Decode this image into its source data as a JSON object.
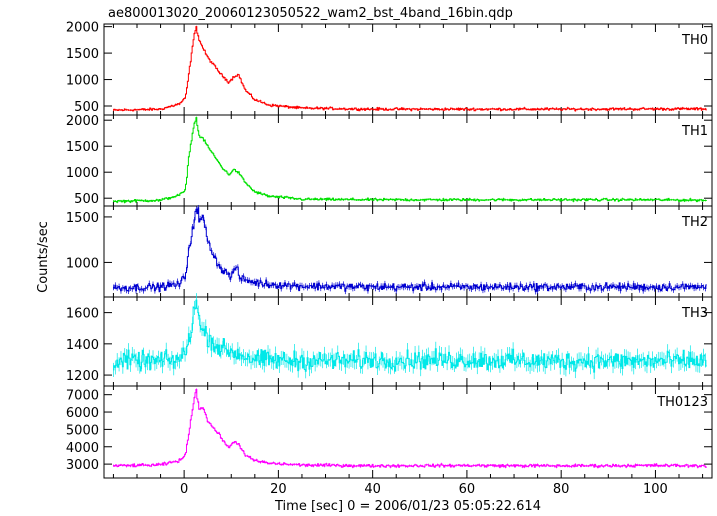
{
  "title": "ae800013020_20060123050522_wam2_bst_4band_16bin.qdp",
  "chart_data": {
    "type": "line",
    "title": "ae800013020_20060123050522_wam2_bst_4band_16bin.qdp",
    "xlabel": "Time [sec] 0 = 2006/01/23 05:05:22.614",
    "ylabel": "Counts/sec",
    "xlim": [
      -17,
      112
    ],
    "xticks": [
      0,
      20,
      40,
      60,
      80,
      100
    ],
    "xtick_labels": [
      "0",
      "20",
      "40",
      "60",
      "80",
      "100"
    ],
    "grid": false,
    "panels": [
      {
        "name": "TH0",
        "color": "#ff0000",
        "ylim": [
          330,
          2050
        ],
        "yticks": [
          500,
          1000,
          1500,
          2000
        ],
        "ytick_labels": [
          "500",
          "1000",
          "1500",
          "2000"
        ],
        "baseline": 420,
        "pre_level": 500,
        "noise": 20,
        "flare_scale": 1550,
        "peak_x": 2.5,
        "peak_y": 2000,
        "keypoints": [
          [
            -15,
            420
          ],
          [
            -5,
            440
          ],
          [
            -1,
            540
          ],
          [
            0.3,
            650
          ],
          [
            1,
            1100
          ],
          [
            2,
            1750
          ],
          [
            2.5,
            2000
          ],
          [
            3.2,
            1750
          ],
          [
            4,
            1600
          ],
          [
            5,
            1420
          ],
          [
            6.5,
            1250
          ],
          [
            8,
            1080
          ],
          [
            9.5,
            950
          ],
          [
            10.5,
            1050
          ],
          [
            11.5,
            1100
          ],
          [
            13,
            800
          ],
          [
            15,
            620
          ],
          [
            18,
            520
          ],
          [
            25,
            460
          ],
          [
            40,
            440
          ],
          [
            60,
            440
          ],
          [
            80,
            440
          ],
          [
            100,
            445
          ],
          [
            111,
            445
          ]
        ]
      },
      {
        "name": "TH1",
        "color": "#00e000",
        "ylim": [
          350,
          2100
        ],
        "yticks": [
          500,
          1000,
          1500,
          2000
        ],
        "ytick_labels": [
          "500",
          "1000",
          "1500",
          "2000"
        ],
        "baseline": 440,
        "pre_level": 520,
        "noise": 20,
        "flare_scale": 1550,
        "peak_x": 2.5,
        "peak_y": 2050,
        "keypoints": [
          [
            -15,
            440
          ],
          [
            -5,
            460
          ],
          [
            -1,
            560
          ],
          [
            0.3,
            650
          ],
          [
            1,
            1300
          ],
          [
            2,
            1850
          ],
          [
            2.5,
            2050
          ],
          [
            3.2,
            1700
          ],
          [
            4,
            1650
          ],
          [
            5,
            1500
          ],
          [
            6.5,
            1300
          ],
          [
            8,
            1100
          ],
          [
            9.5,
            950
          ],
          [
            10.5,
            1050
          ],
          [
            11.5,
            1000
          ],
          [
            13,
            800
          ],
          [
            15,
            620
          ],
          [
            18,
            540
          ],
          [
            25,
            480
          ],
          [
            40,
            470
          ],
          [
            60,
            470
          ],
          [
            80,
            470
          ],
          [
            100,
            470
          ],
          [
            111,
            460
          ]
        ]
      },
      {
        "name": "TH2",
        "color": "#0000d0",
        "ylim": [
          620,
          1620
        ],
        "yticks": [
          1000,
          1500
        ],
        "ytick_labels": [
          "1000",
          "1500"
        ],
        "baseline": 720,
        "pre_level": 760,
        "noise": 35,
        "flare_scale": 800,
        "peak_x": 3,
        "peak_y": 1600,
        "keypoints": [
          [
            -15,
            720
          ],
          [
            -5,
            730
          ],
          [
            -1,
            760
          ],
          [
            0.3,
            850
          ],
          [
            1,
            1150
          ],
          [
            2,
            1400
          ],
          [
            2.5,
            1600
          ],
          [
            3,
            1450
          ],
          [
            4,
            1500
          ],
          [
            5,
            1250
          ],
          [
            6.5,
            1050
          ],
          [
            8,
            920
          ],
          [
            10,
            850
          ],
          [
            11,
            950
          ],
          [
            12,
            820
          ],
          [
            15,
            780
          ],
          [
            18,
            760
          ],
          [
            25,
            740
          ],
          [
            40,
            730
          ],
          [
            60,
            730
          ],
          [
            80,
            730
          ],
          [
            100,
            730
          ],
          [
            111,
            730
          ]
        ]
      },
      {
        "name": "TH3",
        "color": "#00e8e8",
        "ylim": [
          1130,
          1700
        ],
        "yticks": [
          1200,
          1400,
          1600
        ],
        "ytick_labels": [
          "1200",
          "1400",
          "1600"
        ],
        "baseline": 1290,
        "pre_level": 1295,
        "noise": 50,
        "flare_scale": 400,
        "peak_x": 2.5,
        "peak_y": 1680,
        "keypoints": [
          [
            -15,
            1290
          ],
          [
            -5,
            1290
          ],
          [
            -1,
            1300
          ],
          [
            0.5,
            1350
          ],
          [
            1.5,
            1500
          ],
          [
            2.5,
            1680
          ],
          [
            3.5,
            1500
          ],
          [
            5,
            1450
          ],
          [
            7,
            1380
          ],
          [
            10,
            1350
          ],
          [
            15,
            1300
          ],
          [
            25,
            1290
          ],
          [
            40,
            1295
          ],
          [
            60,
            1295
          ],
          [
            80,
            1290
          ],
          [
            100,
            1290
          ],
          [
            111,
            1290
          ]
        ]
      },
      {
        "name": "TH0123",
        "color": "#ff00ff",
        "ylim": [
          2200,
          7500
        ],
        "yticks": [
          3000,
          4000,
          5000,
          6000,
          7000
        ],
        "ytick_labels": [
          "3000",
          "4000",
          "5000",
          "6000",
          "7000"
        ],
        "baseline": 2900,
        "pre_level": 3150,
        "noise": 70,
        "flare_scale": 4400,
        "peak_x": 2.5,
        "peak_y": 7300,
        "keypoints": [
          [
            -15,
            2900
          ],
          [
            -5,
            2950
          ],
          [
            -1,
            3200
          ],
          [
            0.3,
            3500
          ],
          [
            1,
            4800
          ],
          [
            2,
            6500
          ],
          [
            2.5,
            7300
          ],
          [
            3.2,
            6200
          ],
          [
            4,
            6300
          ],
          [
            5,
            5500
          ],
          [
            6.5,
            5000
          ],
          [
            8,
            4500
          ],
          [
            9.5,
            3900
          ],
          [
            10.5,
            4300
          ],
          [
            11.5,
            4200
          ],
          [
            13,
            3500
          ],
          [
            15,
            3200
          ],
          [
            18,
            3050
          ],
          [
            25,
            2950
          ],
          [
            40,
            2900
          ],
          [
            60,
            2920
          ],
          [
            80,
            2900
          ],
          [
            100,
            2920
          ],
          [
            111,
            2900
          ]
        ]
      }
    ]
  }
}
